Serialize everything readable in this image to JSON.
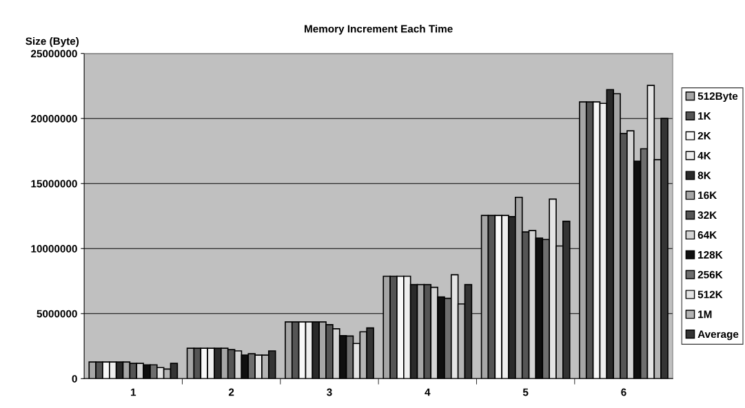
{
  "chart_data": {
    "type": "bar",
    "title": "Memory Increment Each Time",
    "ylabel": "Size (Byte)",
    "categories": [
      "1",
      "2",
      "3",
      "4",
      "5",
      "6"
    ],
    "ylim": [
      0,
      25000000
    ],
    "yticks": [
      0,
      5000000,
      10000000,
      15000000,
      20000000,
      25000000
    ],
    "grid": "y",
    "legend": "right",
    "series": [
      {
        "name": "512Byte",
        "color": "#a6a6a6",
        "values": [
          1280000,
          2340000,
          4360000,
          7870000,
          12550000,
          21270000
        ]
      },
      {
        "name": "1K",
        "color": "#555555",
        "values": [
          1280000,
          2340000,
          4360000,
          7870000,
          12550000,
          21270000
        ]
      },
      {
        "name": "2K",
        "color": "#f8f8f8",
        "values": [
          1280000,
          2340000,
          4360000,
          7870000,
          12550000,
          21270000
        ]
      },
      {
        "name": "4K",
        "color": "#eeeeee",
        "values": [
          1280000,
          2340000,
          4360000,
          7870000,
          12550000,
          21160000
        ]
      },
      {
        "name": "8K",
        "color": "#2a2a2a",
        "values": [
          1280000,
          2340000,
          4360000,
          7230000,
          12450000,
          22220000
        ]
      },
      {
        "name": "16K",
        "color": "#a6a6a6",
        "values": [
          1280000,
          2340000,
          4360000,
          7230000,
          13940000,
          21900000
        ]
      },
      {
        "name": "32K",
        "color": "#555555",
        "values": [
          1170000,
          2230000,
          4150000,
          7230000,
          11280000,
          18840000
        ]
      },
      {
        "name": "64K",
        "color": "#d4d4d4",
        "values": [
          1170000,
          2130000,
          3830000,
          7020000,
          11380000,
          19050000
        ]
      },
      {
        "name": "128K",
        "color": "#0f0f0f",
        "values": [
          1060000,
          1810000,
          3300000,
          6280000,
          10800000,
          16720000
        ]
      },
      {
        "name": "256K",
        "color": "#6e6e6e",
        "values": [
          1060000,
          1910000,
          3280000,
          6170000,
          10700000,
          17670000
        ]
      },
      {
        "name": "512K",
        "color": "#e4e4e4",
        "values": [
          850000,
          1810000,
          2700000,
          7980000,
          13800000,
          22540000
        ]
      },
      {
        "name": "1M",
        "color": "#b4b4b4",
        "values": [
          740000,
          1810000,
          3600000,
          5740000,
          10200000,
          16830000
        ]
      },
      {
        "name": "Average",
        "color": "#343434",
        "values": [
          1170000,
          2130000,
          3900000,
          7230000,
          12100000,
          20000000
        ]
      }
    ]
  }
}
